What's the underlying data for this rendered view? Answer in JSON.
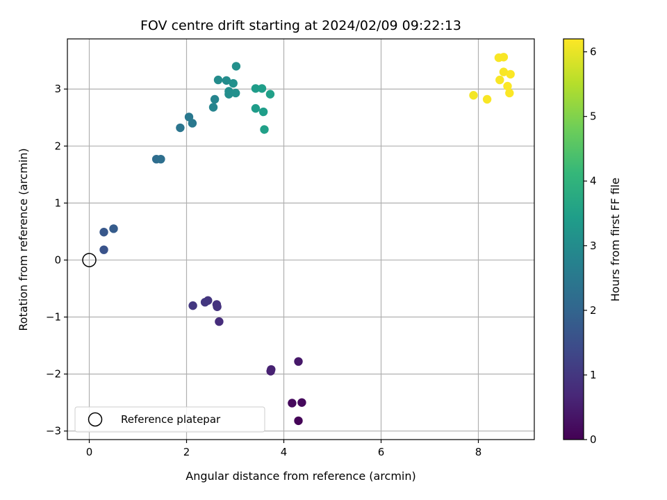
{
  "chart_data": {
    "type": "scatter",
    "title": "FOV centre drift starting at 2024/02/09 09:22:13",
    "xlabel": "Angular distance from reference (arcmin)",
    "ylabel": "Rotation from reference (arcmin)",
    "xlim": [
      -0.45,
      9.15
    ],
    "ylim": [
      -3.15,
      3.88
    ],
    "xticks": [
      0,
      2,
      4,
      6,
      8
    ],
    "yticks": [
      -3,
      -2,
      -1,
      0,
      1,
      2,
      3
    ],
    "xtick_labels": [
      "0",
      "2",
      "4",
      "6",
      "8"
    ],
    "ytick_labels": [
      "−3",
      "−2",
      "−1",
      "0",
      "1",
      "2",
      "3"
    ],
    "grid": true,
    "colormap": "viridis",
    "colorbar": {
      "label": "Hours from first FF file",
      "min": 0,
      "max": 6.2,
      "ticks": [
        0,
        1,
        2,
        3,
        4,
        5,
        6
      ],
      "tick_labels": [
        "0",
        "1",
        "2",
        "3",
        "4",
        "5",
        "6"
      ]
    },
    "reference": {
      "x": 0,
      "y": 0,
      "label": "Reference platepar"
    },
    "legend": {
      "location": "lower-left",
      "entries": [
        "Reference platepar"
      ]
    },
    "series": [
      {
        "points": [
          {
            "x": 4.3,
            "y": -2.82,
            "c": 0.05
          },
          {
            "x": 4.17,
            "y": -2.51,
            "c": 0.15
          },
          {
            "x": 4.37,
            "y": -2.5,
            "c": 0.15
          },
          {
            "x": 4.3,
            "y": -1.78,
            "c": 0.4
          },
          {
            "x": 3.73,
            "y": -1.95,
            "c": 0.55
          },
          {
            "x": 3.74,
            "y": -1.92,
            "c": 0.58
          },
          {
            "x": 2.67,
            "y": -1.08,
            "c": 0.8
          },
          {
            "x": 2.62,
            "y": -0.78,
            "c": 0.9
          },
          {
            "x": 2.63,
            "y": -0.82,
            "c": 0.92
          },
          {
            "x": 2.44,
            "y": -0.71,
            "c": 0.95
          },
          {
            "x": 2.38,
            "y": -0.74,
            "c": 1.0
          },
          {
            "x": 2.13,
            "y": -0.8,
            "c": 1.0
          },
          {
            "x": 0.3,
            "y": 0.18,
            "c": 1.6
          },
          {
            "x": 0.3,
            "y": 0.49,
            "c": 1.7
          },
          {
            "x": 0.5,
            "y": 0.55,
            "c": 1.8
          },
          {
            "x": 1.38,
            "y": 1.77,
            "c": 2.2
          },
          {
            "x": 1.47,
            "y": 1.77,
            "c": 2.25
          },
          {
            "x": 1.87,
            "y": 2.32,
            "c": 2.4
          },
          {
            "x": 2.05,
            "y": 2.51,
            "c": 2.5
          },
          {
            "x": 2.12,
            "y": 2.4,
            "c": 2.5
          },
          {
            "x": 2.55,
            "y": 2.68,
            "c": 2.8
          },
          {
            "x": 2.58,
            "y": 2.82,
            "c": 2.8
          },
          {
            "x": 2.65,
            "y": 3.16,
            "c": 3.0
          },
          {
            "x": 2.82,
            "y": 3.15,
            "c": 3.0
          },
          {
            "x": 2.87,
            "y": 2.96,
            "c": 3.05
          },
          {
            "x": 2.87,
            "y": 2.91,
            "c": 3.05
          },
          {
            "x": 2.96,
            "y": 3.1,
            "c": 3.1
          },
          {
            "x": 3.01,
            "y": 2.93,
            "c": 3.1
          },
          {
            "x": 3.02,
            "y": 3.4,
            "c": 3.1
          },
          {
            "x": 3.42,
            "y": 3.01,
            "c": 3.4
          },
          {
            "x": 3.55,
            "y": 3.01,
            "c": 3.45
          },
          {
            "x": 3.42,
            "y": 2.66,
            "c": 3.4
          },
          {
            "x": 3.58,
            "y": 2.6,
            "c": 3.45
          },
          {
            "x": 3.6,
            "y": 2.29,
            "c": 3.5
          },
          {
            "x": 3.72,
            "y": 2.91,
            "c": 3.5
          },
          {
            "x": 7.9,
            "y": 2.89,
            "c": 6.1
          },
          {
            "x": 8.18,
            "y": 2.82,
            "c": 6.15
          },
          {
            "x": 8.42,
            "y": 3.55,
            "c": 6.15
          },
          {
            "x": 8.52,
            "y": 3.56,
            "c": 6.15
          },
          {
            "x": 8.52,
            "y": 3.3,
            "c": 6.15
          },
          {
            "x": 8.44,
            "y": 3.16,
            "c": 6.15
          },
          {
            "x": 8.6,
            "y": 3.05,
            "c": 6.18
          },
          {
            "x": 8.66,
            "y": 3.26,
            "c": 6.18
          },
          {
            "x": 8.64,
            "y": 2.93,
            "c": 6.18
          }
        ]
      }
    ],
    "colors": {
      "viridis": [
        "#440154",
        "#482878",
        "#3e4989",
        "#31688e",
        "#26828e",
        "#1f9e89",
        "#35b779",
        "#6ece58",
        "#b5de2b",
        "#fde725"
      ],
      "grid": "#b0b0b0",
      "axes": "#000000",
      "reference_marker_face": "none",
      "reference_marker_edge": "#000000"
    }
  }
}
